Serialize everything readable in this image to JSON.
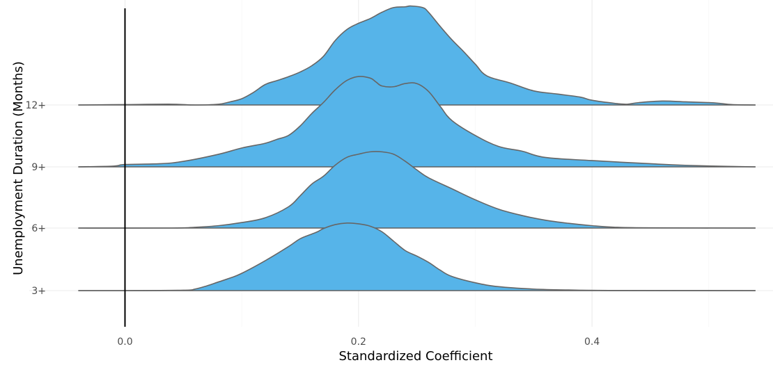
{
  "chart_data": {
    "type": "ridgeline",
    "xlabel": "Standardized Coefficient",
    "ylabel": "Unemployment Duration (Months)",
    "x_ticks": [
      0.0,
      0.2,
      0.4
    ],
    "x_tick_labels": [
      "0.0",
      "0.2",
      "0.4"
    ],
    "xlim": [
      -0.082,
      0.555
    ],
    "data_range": [
      -0.04,
      0.54
    ],
    "grid": true,
    "vertical_reference_line": 0.0,
    "fill_color": "#56B4E9",
    "outline_color": "#666666",
    "series": [
      {
        "name": "3+",
        "density_points": [
          [
            -0.04,
            0
          ],
          [
            0.0,
            0
          ],
          [
            0.05,
            0.005
          ],
          [
            0.06,
            0.02
          ],
          [
            0.07,
            0.06
          ],
          [
            0.08,
            0.11
          ],
          [
            0.09,
            0.16
          ],
          [
            0.1,
            0.22
          ],
          [
            0.12,
            0.38
          ],
          [
            0.14,
            0.56
          ],
          [
            0.15,
            0.66
          ],
          [
            0.16,
            0.72
          ],
          [
            0.165,
            0.75
          ],
          [
            0.17,
            0.79
          ],
          [
            0.18,
            0.84
          ],
          [
            0.19,
            0.86
          ],
          [
            0.2,
            0.85
          ],
          [
            0.21,
            0.82
          ],
          [
            0.22,
            0.75
          ],
          [
            0.23,
            0.63
          ],
          [
            0.24,
            0.51
          ],
          [
            0.25,
            0.44
          ],
          [
            0.26,
            0.36
          ],
          [
            0.27,
            0.26
          ],
          [
            0.28,
            0.18
          ],
          [
            0.3,
            0.1
          ],
          [
            0.32,
            0.05
          ],
          [
            0.35,
            0.02
          ],
          [
            0.38,
            0.008
          ],
          [
            0.42,
            0.002
          ],
          [
            0.54,
            0
          ]
        ]
      },
      {
        "name": "6+",
        "density_points": [
          [
            -0.04,
            0
          ],
          [
            0.04,
            0
          ],
          [
            0.06,
            0.01
          ],
          [
            0.08,
            0.03
          ],
          [
            0.1,
            0.07
          ],
          [
            0.12,
            0.13
          ],
          [
            0.14,
            0.27
          ],
          [
            0.15,
            0.41
          ],
          [
            0.16,
            0.56
          ],
          [
            0.17,
            0.66
          ],
          [
            0.18,
            0.8
          ],
          [
            0.19,
            0.9
          ],
          [
            0.2,
            0.94
          ],
          [
            0.21,
            0.97
          ],
          [
            0.22,
            0.97
          ],
          [
            0.23,
            0.94
          ],
          [
            0.24,
            0.85
          ],
          [
            0.25,
            0.74
          ],
          [
            0.26,
            0.64
          ],
          [
            0.28,
            0.5
          ],
          [
            0.3,
            0.36
          ],
          [
            0.32,
            0.24
          ],
          [
            0.34,
            0.16
          ],
          [
            0.36,
            0.1
          ],
          [
            0.38,
            0.06
          ],
          [
            0.4,
            0.03
          ],
          [
            0.42,
            0.01
          ],
          [
            0.45,
            0.003
          ],
          [
            0.54,
            0
          ]
        ]
      },
      {
        "name": "9+",
        "density_points": [
          [
            -0.04,
            0
          ],
          [
            -0.01,
            0.01
          ],
          [
            0.0,
            0.03
          ],
          [
            0.03,
            0.04
          ],
          [
            0.05,
            0.07
          ],
          [
            0.08,
            0.16
          ],
          [
            0.1,
            0.24
          ],
          [
            0.12,
            0.3
          ],
          [
            0.13,
            0.35
          ],
          [
            0.14,
            0.4
          ],
          [
            0.15,
            0.52
          ],
          [
            0.16,
            0.68
          ],
          [
            0.17,
            0.82
          ],
          [
            0.18,
            0.98
          ],
          [
            0.19,
            1.1
          ],
          [
            0.2,
            1.15
          ],
          [
            0.21,
            1.13
          ],
          [
            0.215,
            1.08
          ],
          [
            0.22,
            1.03
          ],
          [
            0.23,
            1.02
          ],
          [
            0.24,
            1.06
          ],
          [
            0.25,
            1.06
          ],
          [
            0.26,
            0.96
          ],
          [
            0.27,
            0.77
          ],
          [
            0.28,
            0.59
          ],
          [
            0.3,
            0.4
          ],
          [
            0.32,
            0.26
          ],
          [
            0.34,
            0.2
          ],
          [
            0.36,
            0.12
          ],
          [
            0.4,
            0.08
          ],
          [
            0.45,
            0.04
          ],
          [
            0.48,
            0.02
          ],
          [
            0.52,
            0.005
          ],
          [
            0.54,
            0
          ]
        ]
      },
      {
        "name": "12+",
        "density_points": [
          [
            -0.04,
            0
          ],
          [
            0.0,
            0.005
          ],
          [
            0.04,
            0.01
          ],
          [
            0.06,
            0
          ],
          [
            0.08,
            0.01
          ],
          [
            0.09,
            0.04
          ],
          [
            0.1,
            0.08
          ],
          [
            0.11,
            0.16
          ],
          [
            0.12,
            0.26
          ],
          [
            0.13,
            0.31
          ],
          [
            0.14,
            0.36
          ],
          [
            0.15,
            0.42
          ],
          [
            0.16,
            0.5
          ],
          [
            0.17,
            0.62
          ],
          [
            0.18,
            0.82
          ],
          [
            0.19,
            0.96
          ],
          [
            0.2,
            1.04
          ],
          [
            0.21,
            1.1
          ],
          [
            0.22,
            1.18
          ],
          [
            0.23,
            1.24
          ],
          [
            0.24,
            1.25
          ],
          [
            0.245,
            1.26
          ],
          [
            0.255,
            1.24
          ],
          [
            0.26,
            1.18
          ],
          [
            0.27,
            1.0
          ],
          [
            0.28,
            0.83
          ],
          [
            0.29,
            0.68
          ],
          [
            0.3,
            0.52
          ],
          [
            0.31,
            0.37
          ],
          [
            0.33,
            0.28
          ],
          [
            0.35,
            0.18
          ],
          [
            0.37,
            0.14
          ],
          [
            0.39,
            0.1
          ],
          [
            0.4,
            0.06
          ],
          [
            0.42,
            0.02
          ],
          [
            0.43,
            0.01
          ],
          [
            0.44,
            0.03
          ],
          [
            0.46,
            0.05
          ],
          [
            0.48,
            0.04
          ],
          [
            0.5,
            0.03
          ],
          [
            0.51,
            0.02
          ],
          [
            0.52,
            0.005
          ],
          [
            0.54,
            0
          ]
        ]
      }
    ]
  }
}
